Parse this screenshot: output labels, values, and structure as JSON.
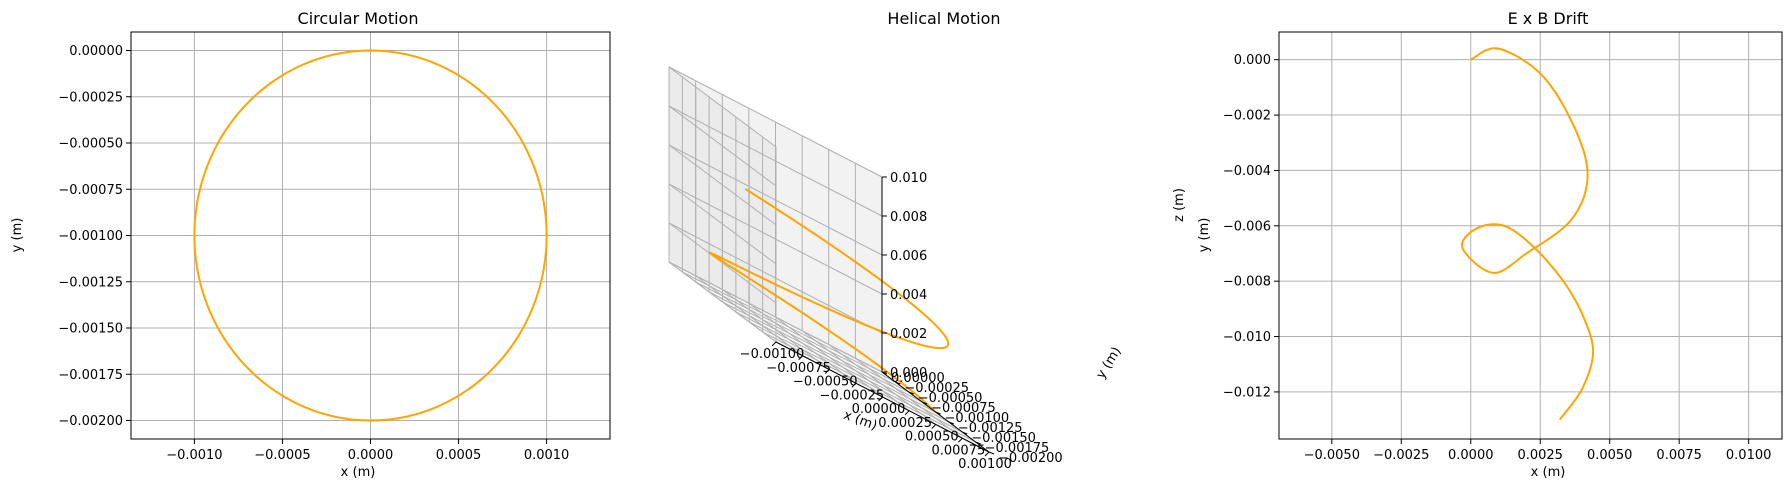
{
  "chart_data": [
    {
      "type": "line",
      "title": "Circular Motion",
      "xlabel": "x (m)",
      "ylabel": "y (m)",
      "xlim": [
        -0.00136,
        0.00136
      ],
      "ylim": [
        -0.0021,
        0.0001
      ],
      "xticks": [
        -0.001,
        -0.0005,
        0.0,
        0.0005,
        0.001
      ],
      "xtick_labels": [
        "−0.0010",
        "−0.0005",
        "0.0000",
        "0.0005",
        "0.0010"
      ],
      "yticks": [
        0.0,
        -0.00025,
        -0.0005,
        -0.00075,
        -0.001,
        -0.00125,
        -0.0015,
        -0.00175,
        -0.002
      ],
      "ytick_labels": [
        "0.00000",
        "−0.00025",
        "−0.00050",
        "−0.00075",
        "−0.00100",
        "−0.00125",
        "−0.00150",
        "−0.00175",
        "−0.00200"
      ],
      "grid": true,
      "color": "#ffa500",
      "series": [
        {
          "center": [
            0.0,
            -0.001
          ],
          "radius": 0.001
        }
      ]
    },
    {
      "type": "line",
      "title": "Helical Motion",
      "xlabel": "x (m)",
      "ylabel": "y (m)",
      "zlabel": "z (m)",
      "xlim": [
        -0.001,
        0.001
      ],
      "ylim": [
        -0.002,
        0.0
      ],
      "zlim": [
        0.0,
        0.01
      ],
      "xtick_labels": [
        "−0.00100",
        "−0.00075",
        "−0.00050",
        "−0.00025",
        "0.00000",
        "0.00025",
        "0.00050",
        "0.00075",
        "0.00100"
      ],
      "ytick_labels": [
        "0.00000",
        "−0.00025",
        "−0.00050",
        "−0.00075",
        "−0.00100",
        "−0.00125",
        "−0.00150",
        "−0.00175",
        "−0.00200"
      ],
      "ztick_labels": [
        "0.000",
        "0.002",
        "0.004",
        "0.006",
        "0.008",
        "0.010"
      ],
      "grid": true,
      "color": "#ffa500",
      "series": [
        {
          "center": [
            0.0,
            -0.001
          ],
          "radius": 0.001,
          "z_range": [
            0.0,
            0.0058
          ],
          "turns": 1.3
        }
      ]
    },
    {
      "type": "line",
      "title": "E x B Drift",
      "xlabel": "x (m)",
      "ylabel": "y (m)",
      "xlim": [
        -0.0069,
        0.0112
      ],
      "ylim": [
        -0.0137,
        0.001
      ],
      "xticks": [
        -0.005,
        -0.0025,
        0.0,
        0.0025,
        0.005,
        0.0075,
        0.01
      ],
      "xtick_labels": [
        "−0.0050",
        "−0.0025",
        "0.0000",
        "0.0025",
        "0.0050",
        "0.0075",
        "0.0100"
      ],
      "yticks": [
        0.0,
        -0.002,
        -0.004,
        -0.006,
        -0.008,
        -0.01,
        -0.012
      ],
      "ytick_labels": [
        "0.000",
        "−0.002",
        "−0.004",
        "−0.006",
        "−0.008",
        "−0.010",
        "−0.012"
      ],
      "grid": true,
      "color": "#ffa500",
      "series": [
        {
          "x": [
            0.0,
            0.001,
            0.0026,
            0.0038,
            0.0042,
            0.0036,
            0.002,
            0.0008,
            -0.0003,
            0.0002,
            0.0012,
            0.0023,
            0.0034,
            0.0041,
            0.0044,
            0.004,
            0.0032
          ],
          "y": [
            0.0,
            0.0004,
            -0.0006,
            -0.0026,
            -0.0043,
            -0.0058,
            -0.007,
            -0.0077,
            -0.0068,
            -0.0061,
            -0.006,
            -0.0068,
            -0.0081,
            -0.0094,
            -0.0106,
            -0.0119,
            -0.013
          ]
        }
      ]
    }
  ]
}
